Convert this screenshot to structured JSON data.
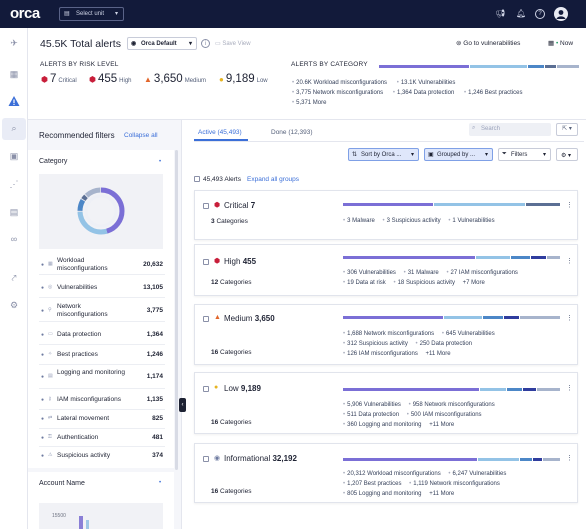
{
  "topbar": {
    "logo": "orca",
    "unit_select": "Select unit",
    "icons": [
      "megaphone-icon",
      "bell-icon",
      "help-icon",
      "user-avatar-icon"
    ]
  },
  "rail": {
    "icons": [
      "rocket-icon",
      "dashboard-icon",
      "alerts-icon",
      "search-icon",
      "inventory-icon",
      "graph-icon",
      "compliance-icon",
      "binoculars-icon",
      "integrations-icon",
      "settings-icon"
    ]
  },
  "header": {
    "title": "45.5K Total alerts",
    "view": "Orca Default",
    "save_view": "Save View",
    "goto_vulns": "Go to vulnerabilities",
    "now": "Now"
  },
  "risk": {
    "title": "ALERTS BY RISK LEVEL",
    "levels": [
      {
        "value": "7",
        "label": "Critical",
        "color": "#c81e3a"
      },
      {
        "value": "455",
        "label": "High",
        "color": "#c81e3a"
      },
      {
        "value": "3,650",
        "label": "Medium",
        "color": "#e2662b"
      },
      {
        "value": "9,189",
        "label": "Low",
        "color": "#e6b422"
      }
    ]
  },
  "categories": {
    "title": "ALERTS BY CATEGORY",
    "items": [
      {
        "value": "20.6K",
        "label": "Workload misconfigurations"
      },
      {
        "value": "13.1K",
        "label": "Vulnerabilities"
      },
      {
        "value": "3,775",
        "label": "Network misconfigurations"
      },
      {
        "value": "1,364",
        "label": "Data protection"
      },
      {
        "value": "1,246",
        "label": "Best practices"
      },
      {
        "value": "5,371",
        "label": "More"
      }
    ],
    "bar_colors": [
      "#7b6fd6",
      "#93c3e6",
      "#4c87c7",
      "#5b6f94",
      "#a7b4cc"
    ]
  },
  "filters": {
    "title": "Recommended filters",
    "collapse_all": "Collapse all",
    "category_title": "Category",
    "rows": [
      {
        "label": "Workload misconfigurations",
        "value": "20,632"
      },
      {
        "label": "Vulnerabilities",
        "value": "13,105"
      },
      {
        "label": "Network misconfigurations",
        "value": "3,775"
      },
      {
        "label": "Data protection",
        "value": "1,364"
      },
      {
        "label": "Best practices",
        "value": "1,246"
      },
      {
        "label": "Logging and monitoring",
        "value": "1,174"
      },
      {
        "label": "IAM misconfigurations",
        "value": "1,135"
      },
      {
        "label": "Lateral movement",
        "value": "825"
      },
      {
        "label": "Authentication",
        "value": "481"
      },
      {
        "label": "Suspicious activity",
        "value": "374"
      }
    ],
    "account_title": "Account Name",
    "account_tick": "15500"
  },
  "tabs": {
    "active": "Active (45,493)",
    "done": "Done (12,393)",
    "search_placeholder": "Search"
  },
  "controls": {
    "sort": "Sort by Orca ...",
    "group": "Grouped by ...",
    "filters": "Filters"
  },
  "list": {
    "count": "45,493 Alerts",
    "expand_all": "Expand all groups",
    "cards": [
      {
        "severity": "Critical",
        "count": "7",
        "color": "#c81e3a",
        "categories": "3",
        "categories_label": "Categories",
        "items": [
          {
            "v": "3",
            "l": "Malware"
          },
          {
            "v": "3",
            "l": "Suspicious activity"
          },
          {
            "v": "1",
            "l": "Vulnerabilities"
          }
        ],
        "more": ""
      },
      {
        "severity": "High",
        "count": "455",
        "color": "#c81e3a",
        "categories": "12",
        "categories_label": "Categories",
        "items": [
          {
            "v": "306",
            "l": "Vulnerabilities"
          },
          {
            "v": "31",
            "l": "Malware"
          },
          {
            "v": "27",
            "l": "IAM misconfigurations"
          },
          {
            "v": "19",
            "l": "Data at risk"
          },
          {
            "v": "18",
            "l": "Suspicious activity"
          }
        ],
        "more": "+7 More"
      },
      {
        "severity": "Medium",
        "count": "3,650",
        "color": "#e2662b",
        "categories": "16",
        "categories_label": "Categories",
        "items": [
          {
            "v": "1,688",
            "l": "Network misconfigurations"
          },
          {
            "v": "645",
            "l": "Vulnerabilities"
          },
          {
            "v": "312",
            "l": "Suspicious activity"
          },
          {
            "v": "250",
            "l": "Data protection"
          },
          {
            "v": "126",
            "l": "IAM misconfigurations"
          }
        ],
        "more": "+11 More"
      },
      {
        "severity": "Low",
        "count": "9,189",
        "color": "#e6b422",
        "categories": "16",
        "categories_label": "Categories",
        "items": [
          {
            "v": "5,906",
            "l": "Vulnerabilities"
          },
          {
            "v": "958",
            "l": "Network misconfigurations"
          },
          {
            "v": "511",
            "l": "Data protection"
          },
          {
            "v": "500",
            "l": "IAM misconfigurations"
          },
          {
            "v": "360",
            "l": "Logging and monitoring"
          }
        ],
        "more": "+11 More"
      },
      {
        "severity": "Informational",
        "count": "32,192",
        "color": "#6d7aa0",
        "categories": "16",
        "categories_label": "Categories",
        "items": [
          {
            "v": "20,312",
            "l": "Workload misconfigurations"
          },
          {
            "v": "6,247",
            "l": "Vulnerabilities"
          },
          {
            "v": "1,207",
            "l": "Best practices"
          },
          {
            "v": "1,119",
            "l": "Network misconfigurations"
          },
          {
            "v": "805",
            "l": "Logging and monitoring"
          }
        ],
        "more": "+11 More"
      }
    ]
  }
}
